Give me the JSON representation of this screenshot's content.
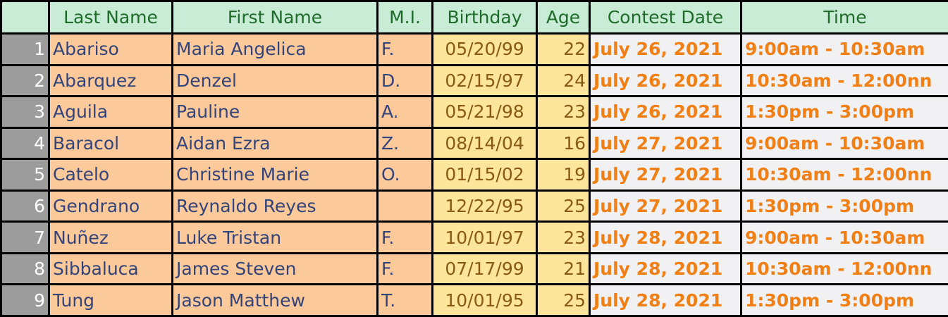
{
  "colors": {
    "header_bg": "#c9ecd6",
    "header_text": "#1e6b2a",
    "row_number_bg": "#9c9c9c",
    "name_bg": "#fcc99a",
    "name_text": "#33447a",
    "birthday_bg": "#fde59b",
    "birthday_text": "#8a5a12",
    "contest_bg": "#f1f1f4",
    "contest_text": "#f08016"
  },
  "headers": {
    "last_name": "Last Name",
    "first_name": "First Name",
    "mi": "M.I.",
    "birthday": "Birthday",
    "age": "Age",
    "contest_date": "Contest Date",
    "time": "Time"
  },
  "rows": [
    {
      "num": "1",
      "last": "Abariso",
      "first": "Maria Angelica",
      "mi": "F.",
      "birthday": "05/20/99",
      "age": "22",
      "date": "July 26, 2021",
      "time": "9:00am - 10:30am"
    },
    {
      "num": "2",
      "last": "Abarquez",
      "first": "Denzel",
      "mi": "D.",
      "birthday": "02/15/97",
      "age": "24",
      "date": "July 26, 2021",
      "time": "10:30am - 12:00nn"
    },
    {
      "num": "3",
      "last": "Aguila",
      "first": "Pauline",
      "mi": "A.",
      "birthday": "05/21/98",
      "age": "23",
      "date": "July 26, 2021",
      "time": "1:30pm - 3:00pm"
    },
    {
      "num": "4",
      "last": "Baracol",
      "first": "Aidan Ezra",
      "mi": "Z.",
      "birthday": "08/14/04",
      "age": "16",
      "date": "July 27, 2021",
      "time": "9:00am - 10:30am"
    },
    {
      "num": "5",
      "last": "Catelo",
      "first": "Christine Marie",
      "mi": "O.",
      "birthday": "01/15/02",
      "age": "19",
      "date": "July 27, 2021",
      "time": "10:30am - 12:00nn"
    },
    {
      "num": "6",
      "last": "Gendrano",
      "first": "Reynaldo Reyes",
      "mi": "",
      "birthday": "12/22/95",
      "age": "25",
      "date": "July 27, 2021",
      "time": "1:30pm - 3:00pm"
    },
    {
      "num": "7",
      "last": "Nuñez",
      "first": "Luke Tristan",
      "mi": "F.",
      "birthday": "10/01/97",
      "age": "23",
      "date": "July 28, 2021",
      "time": "9:00am - 10:30am"
    },
    {
      "num": "8",
      "last": "Sibbaluca",
      "first": "James Steven",
      "mi": "F.",
      "birthday": "07/17/99",
      "age": "21",
      "date": "July 28, 2021",
      "time": "10:30am - 12:00nn"
    },
    {
      "num": "9",
      "last": "Tung",
      "first": "Jason Matthew",
      "mi": "T.",
      "birthday": "10/01/95",
      "age": "25",
      "date": "July 28, 2021",
      "time": "1:30pm - 3:00pm"
    }
  ]
}
